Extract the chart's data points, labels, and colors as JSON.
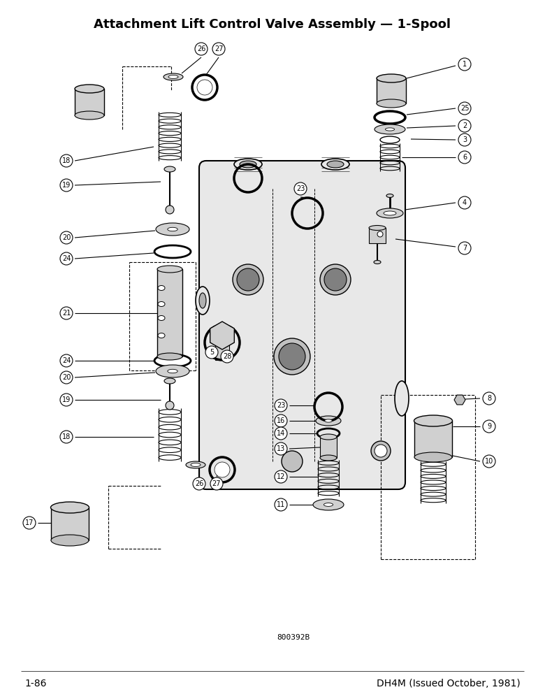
{
  "title": "Attachment Lift Control Valve Assembly — 1-Spool",
  "footer_left": "1-86",
  "footer_right": "DH4M (Issued October, 1981)",
  "figure_code": "800392B",
  "bg_color": "#ffffff",
  "line_color": "#000000",
  "title_fontsize": 13,
  "footer_fontsize": 10,
  "figcode_fontsize": 8
}
